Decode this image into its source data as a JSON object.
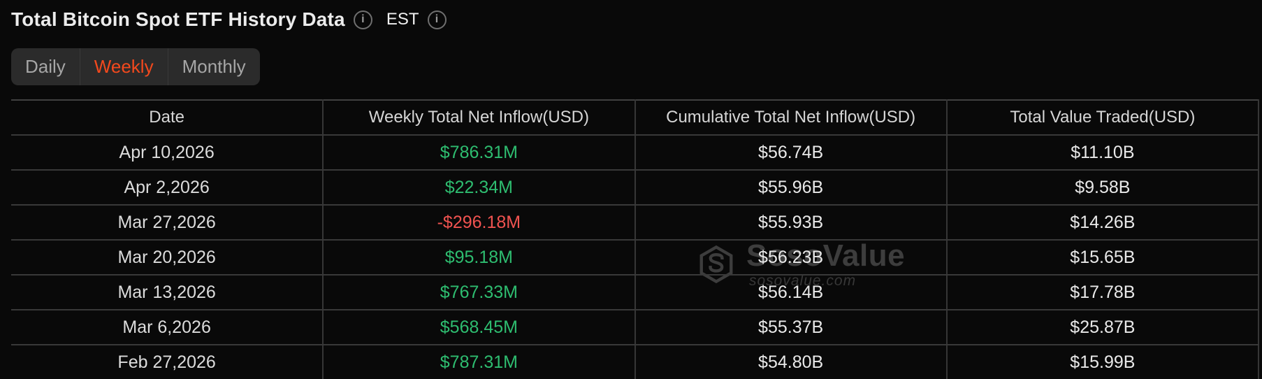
{
  "colors": {
    "accent": "#f3491d",
    "positive": "#2ebd70",
    "negative": "#f05350",
    "watermark": "#3d3d3d"
  },
  "header": {
    "title": "Total Bitcoin Spot ETF History Data",
    "timezone_label": "EST"
  },
  "tabs": [
    {
      "label": "Daily",
      "active": false
    },
    {
      "label": "Weekly",
      "active": true
    },
    {
      "label": "Monthly",
      "active": false
    }
  ],
  "table": {
    "columns": [
      {
        "key": "date",
        "label": "Date"
      },
      {
        "key": "weekly",
        "label": "Weekly Total Net Inflow(USD)"
      },
      {
        "key": "cumulative",
        "label": "Cumulative Total Net Inflow(USD)"
      },
      {
        "key": "traded",
        "label": "Total Value Traded(USD)"
      }
    ],
    "rows": [
      {
        "date": "Apr 10,2026",
        "weekly": "$786.31M",
        "weekly_sign": "positive",
        "cumulative": "$56.74B",
        "traded": "$11.10B"
      },
      {
        "date": "Apr 2,2026",
        "weekly": "$22.34M",
        "weekly_sign": "positive",
        "cumulative": "$55.96B",
        "traded": "$9.58B"
      },
      {
        "date": "Mar 27,2026",
        "weekly": "-$296.18M",
        "weekly_sign": "negative",
        "cumulative": "$55.93B",
        "traded": "$14.26B"
      },
      {
        "date": "Mar 20,2026",
        "weekly": "$95.18M",
        "weekly_sign": "positive",
        "cumulative": "$56.23B",
        "traded": "$15.65B"
      },
      {
        "date": "Mar 13,2026",
        "weekly": "$767.33M",
        "weekly_sign": "positive",
        "cumulative": "$56.14B",
        "traded": "$17.78B"
      },
      {
        "date": "Mar 6,2026",
        "weekly": "$568.45M",
        "weekly_sign": "positive",
        "cumulative": "$55.37B",
        "traded": "$25.87B"
      },
      {
        "date": "Feb 27,2026",
        "weekly": "$787.31M",
        "weekly_sign": "positive",
        "cumulative": "$54.80B",
        "traded": "$15.99B"
      }
    ]
  },
  "watermark": {
    "brand": "SosoValue",
    "site": "sosovalue.com"
  }
}
